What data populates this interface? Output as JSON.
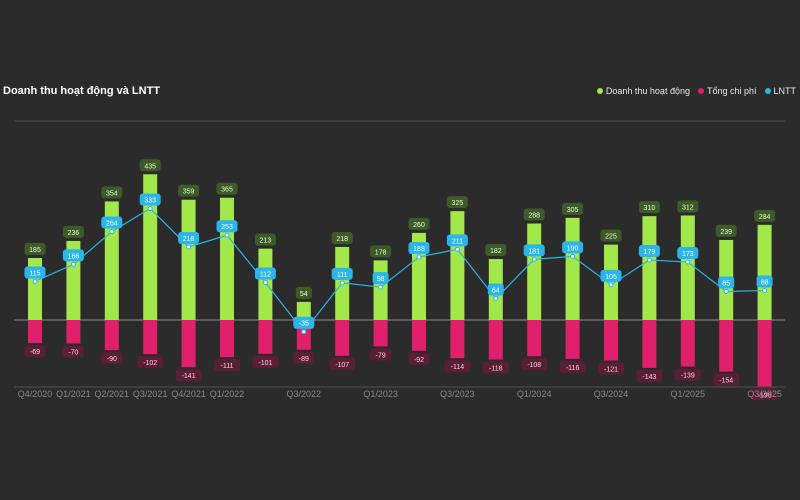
{
  "colors": {
    "background": "#2b2b2b",
    "revenue": "#a3e84a",
    "cost": "#e0206a",
    "profit": "#2bb5e8",
    "grid": "#555555",
    "axis_text": "#8a8a8a"
  },
  "chart_data": {
    "type": "bar",
    "title": "Doanh thu hoạt động và LNTT",
    "legend_position": "top-right",
    "categories": [
      "Q4/2020",
      "Q1/2021",
      "Q2/2021",
      "Q3/2021",
      "Q4/2021",
      "Q1/2022",
      "Q2/2022",
      "Q3/2022",
      "Q4/2022",
      "Q1/2023",
      "Q2/2023",
      "Q3/2023",
      "Q4/2023",
      "Q1/2024",
      "Q2/2024",
      "Q3/2024",
      "Q4/2024",
      "Q1/2025",
      "Q2/2025",
      "Q3/2025"
    ],
    "x_tick_labels": [
      "Q4/2020",
      "Q1/2021",
      "Q2/2021",
      "Q3/2021",
      "Q4/2021",
      "Q1/2022",
      "",
      "Q3/2022",
      "",
      "Q1/2023",
      "",
      "Q3/2023",
      "",
      "Q1/2024",
      "",
      "Q3/2024",
      "",
      "Q1/2025",
      "",
      "Q3/2025"
    ],
    "series": [
      {
        "name": "Doanh thu hoạt động",
        "type": "bar",
        "color": "#a3e84a",
        "values": [
          185,
          236,
          354,
          435,
          359,
          365,
          213,
          54,
          218,
          178,
          260,
          325,
          182,
          288,
          305,
          225,
          310,
          312,
          239,
          284
        ]
      },
      {
        "name": "Tổng chi phí",
        "type": "bar",
        "color": "#e0206a",
        "values": [
          -69,
          -70,
          -90,
          -102,
          -141,
          -111,
          -101,
          -89,
          -107,
          -79,
          -92,
          -114,
          -118,
          -108,
          -116,
          -121,
          -143,
          -139,
          -154,
          -198
        ]
      },
      {
        "name": "LNTT",
        "type": "line",
        "color": "#2bb5e8",
        "values": [
          115,
          166,
          264,
          333,
          218,
          253,
          112,
          -35,
          111,
          98,
          188,
          211,
          64,
          181,
          190,
          105,
          179,
          173,
          85,
          88
        ]
      }
    ],
    "ylim": [
      -200,
      460
    ],
    "grid": true
  }
}
